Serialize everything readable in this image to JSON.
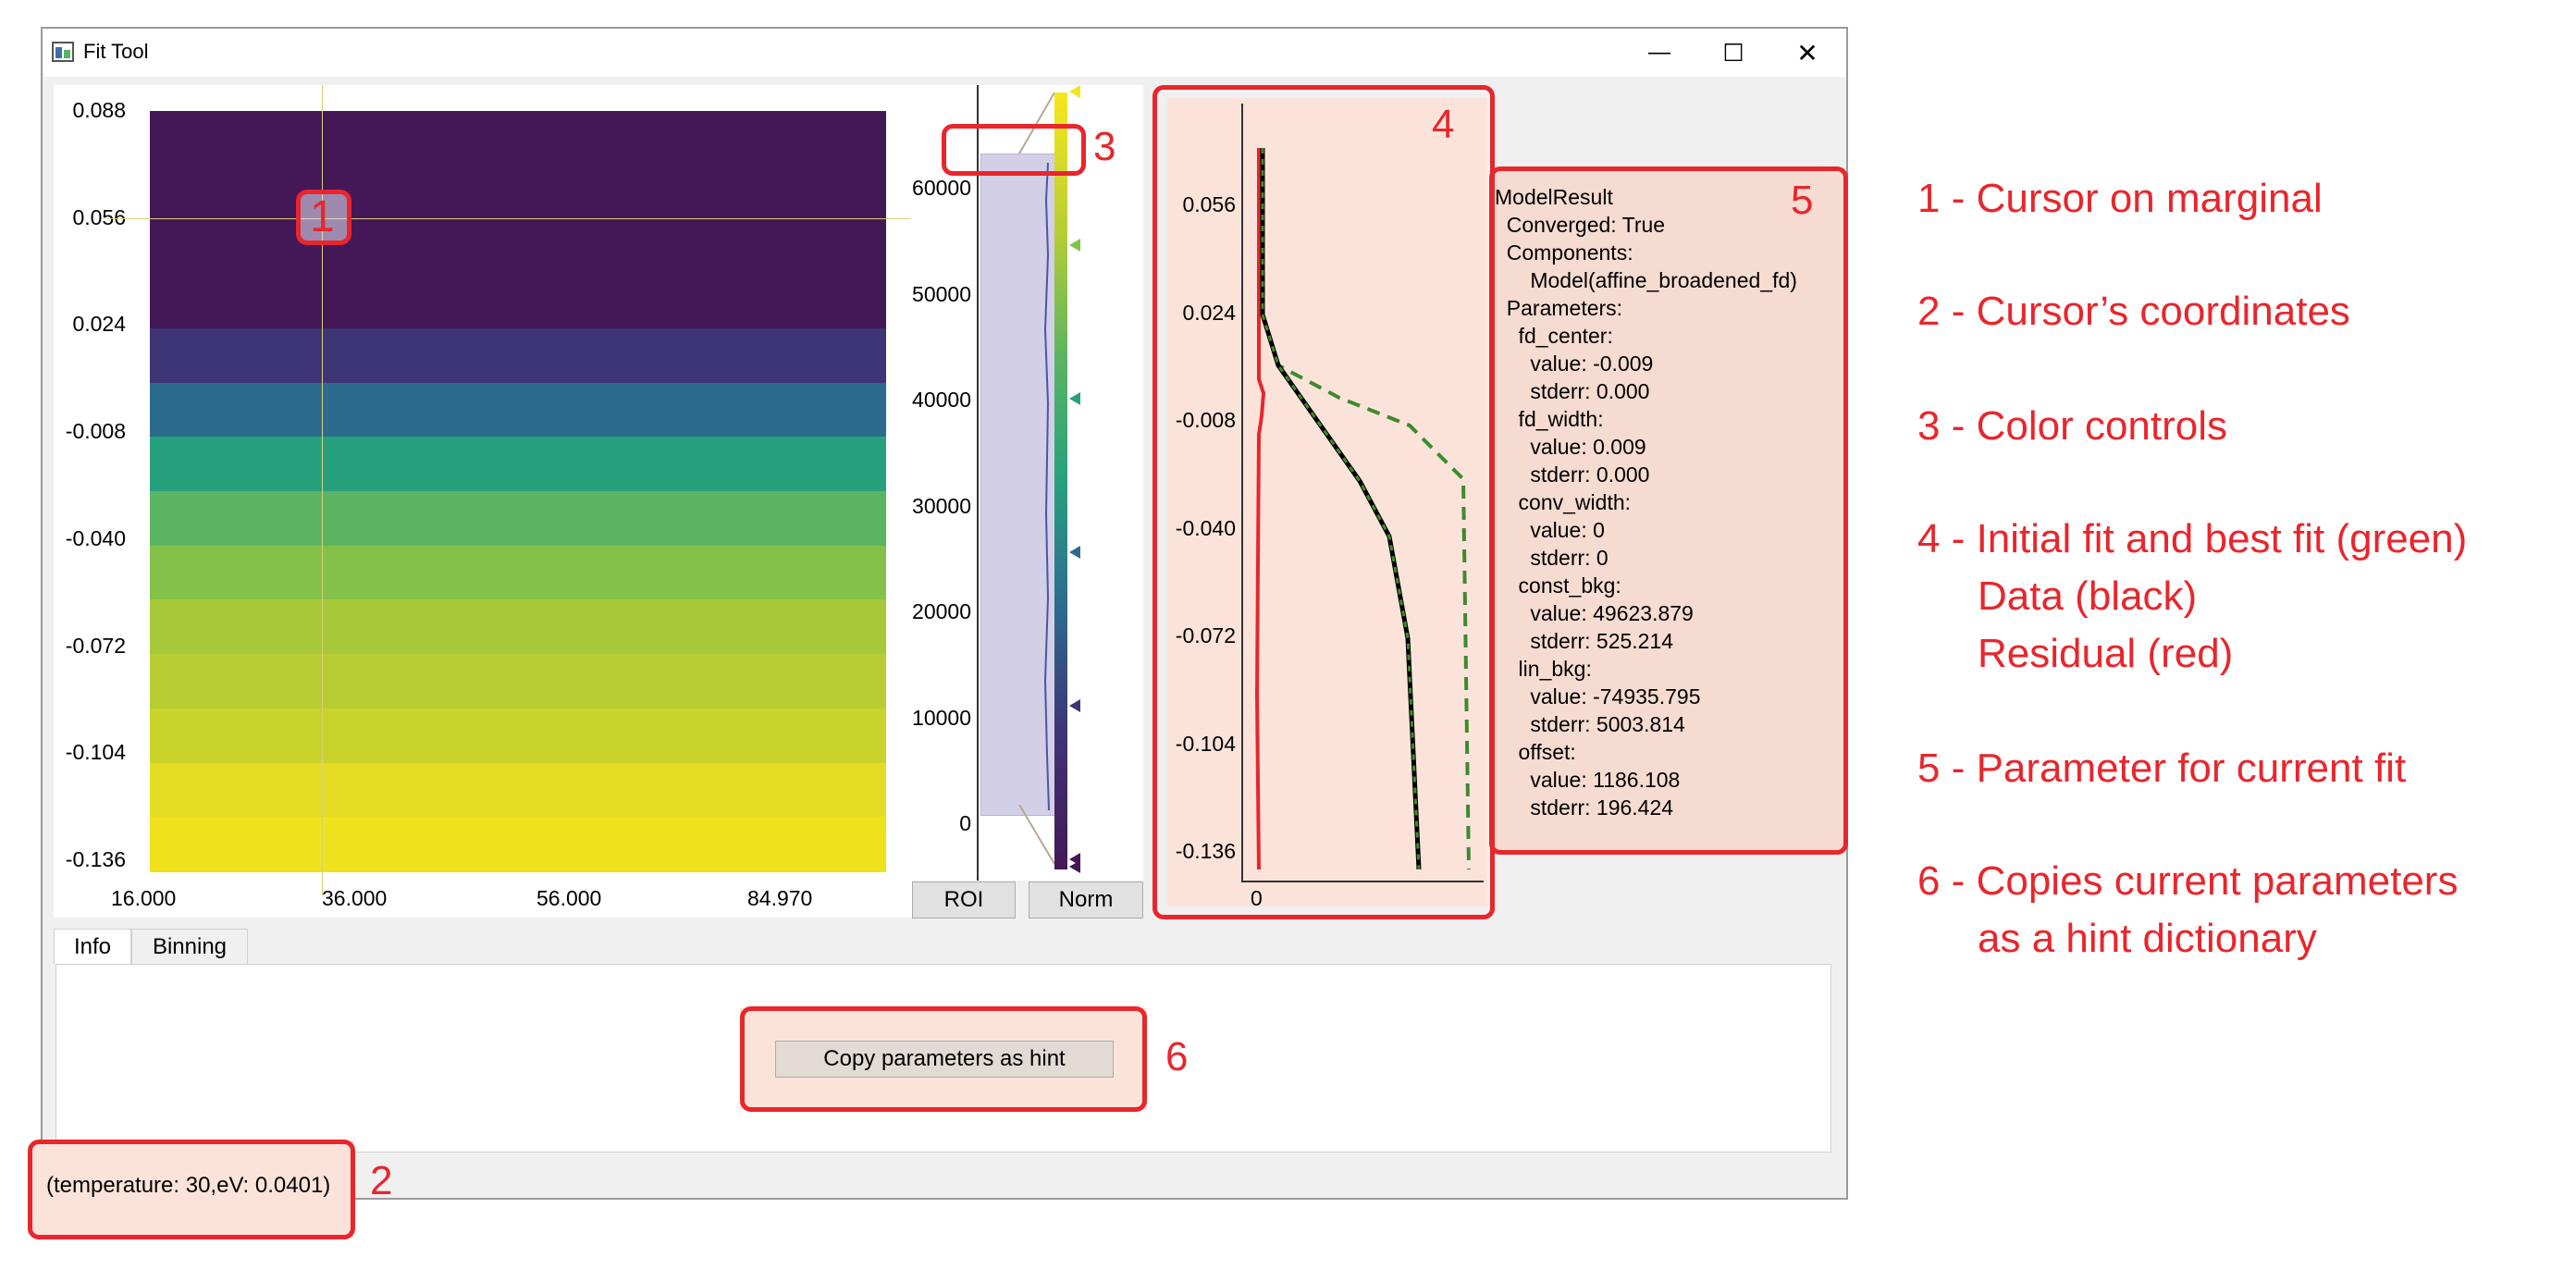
{
  "window": {
    "title": "Fit Tool",
    "minimize_glyph": "—",
    "maximize_glyph": "☐",
    "close_glyph": "✕"
  },
  "heatmap": {
    "y_ticks": [
      "0.088",
      "0.056",
      "0.024",
      "-0.008",
      "-0.040",
      "-0.072",
      "-0.104",
      "-0.136"
    ],
    "x_ticks": [
      "16.000",
      "36.000",
      "56.000",
      "84.970"
    ],
    "row_colors": [
      "#441856",
      "#441856",
      "#441856",
      "#441856",
      "#3e3577",
      "#2d6b8e",
      "#27a07e",
      "#5bb462",
      "#84c148",
      "#a7c838",
      "#b7cd33",
      "#c9d42a",
      "#e4dc22",
      "#efe21c"
    ],
    "cursor_label": "1"
  },
  "colorbar": {
    "ticks": [
      "60000",
      "50000",
      "40000",
      "30000",
      "20000",
      "10000",
      "0"
    ],
    "buttons": [
      "ROI",
      "Norm"
    ],
    "marker_colors": [
      "#f2e51d",
      "#84c148",
      "#27a07e",
      "#2d6b8e",
      "#3e3577",
      "#441856"
    ]
  },
  "fit_plot": {
    "y_ticks": [
      "0.056",
      "0.024",
      "-0.008",
      "-0.040",
      "-0.072",
      "-0.104",
      "-0.136"
    ],
    "x_ticks": [
      "0"
    ],
    "colors": {
      "initial": "#3e8a2e",
      "best": "#3e8a2e",
      "data": "#000000",
      "residual": "#e8262c"
    }
  },
  "model_result": {
    "lines": [
      "ModelResult",
      "  Converged: True",
      "  Components:",
      "      Model(affine_broadened_fd)",
      "  Parameters:",
      "    fd_center:",
      "      value: -0.009",
      "      stderr: 0.000",
      "    fd_width:",
      "      value: 0.009",
      "      stderr: 0.000",
      "    conv_width:",
      "      value: 0",
      "      stderr: 0",
      "    const_bkg:",
      "      value: 49623.879",
      "      stderr: 525.214",
      "    lin_bkg:",
      "      value: -74935.795",
      "      stderr: 5003.814",
      "    offset:",
      "      value: 1186.108",
      "      stderr: 196.424"
    ]
  },
  "tabs": [
    "Info",
    "Binning"
  ],
  "copy_button": "Copy parameters as hint",
  "status": "(temperature: 30,eV: 0.0401)",
  "annotations": {
    "numbers": [
      "1",
      "2",
      "3",
      "4",
      "5",
      "6"
    ],
    "legend": [
      "1 - Cursor on marginal",
      "2 - Cursor’s coordinates",
      "3 - Color controls",
      "4 - Initial fit and best fit (green)",
      "Data (black)",
      "Residual (red)",
      "5 - Parameter for current fit",
      "6 - Copies current parameters",
      "as a hint dictionary"
    ],
    "color": "#e8262c"
  }
}
